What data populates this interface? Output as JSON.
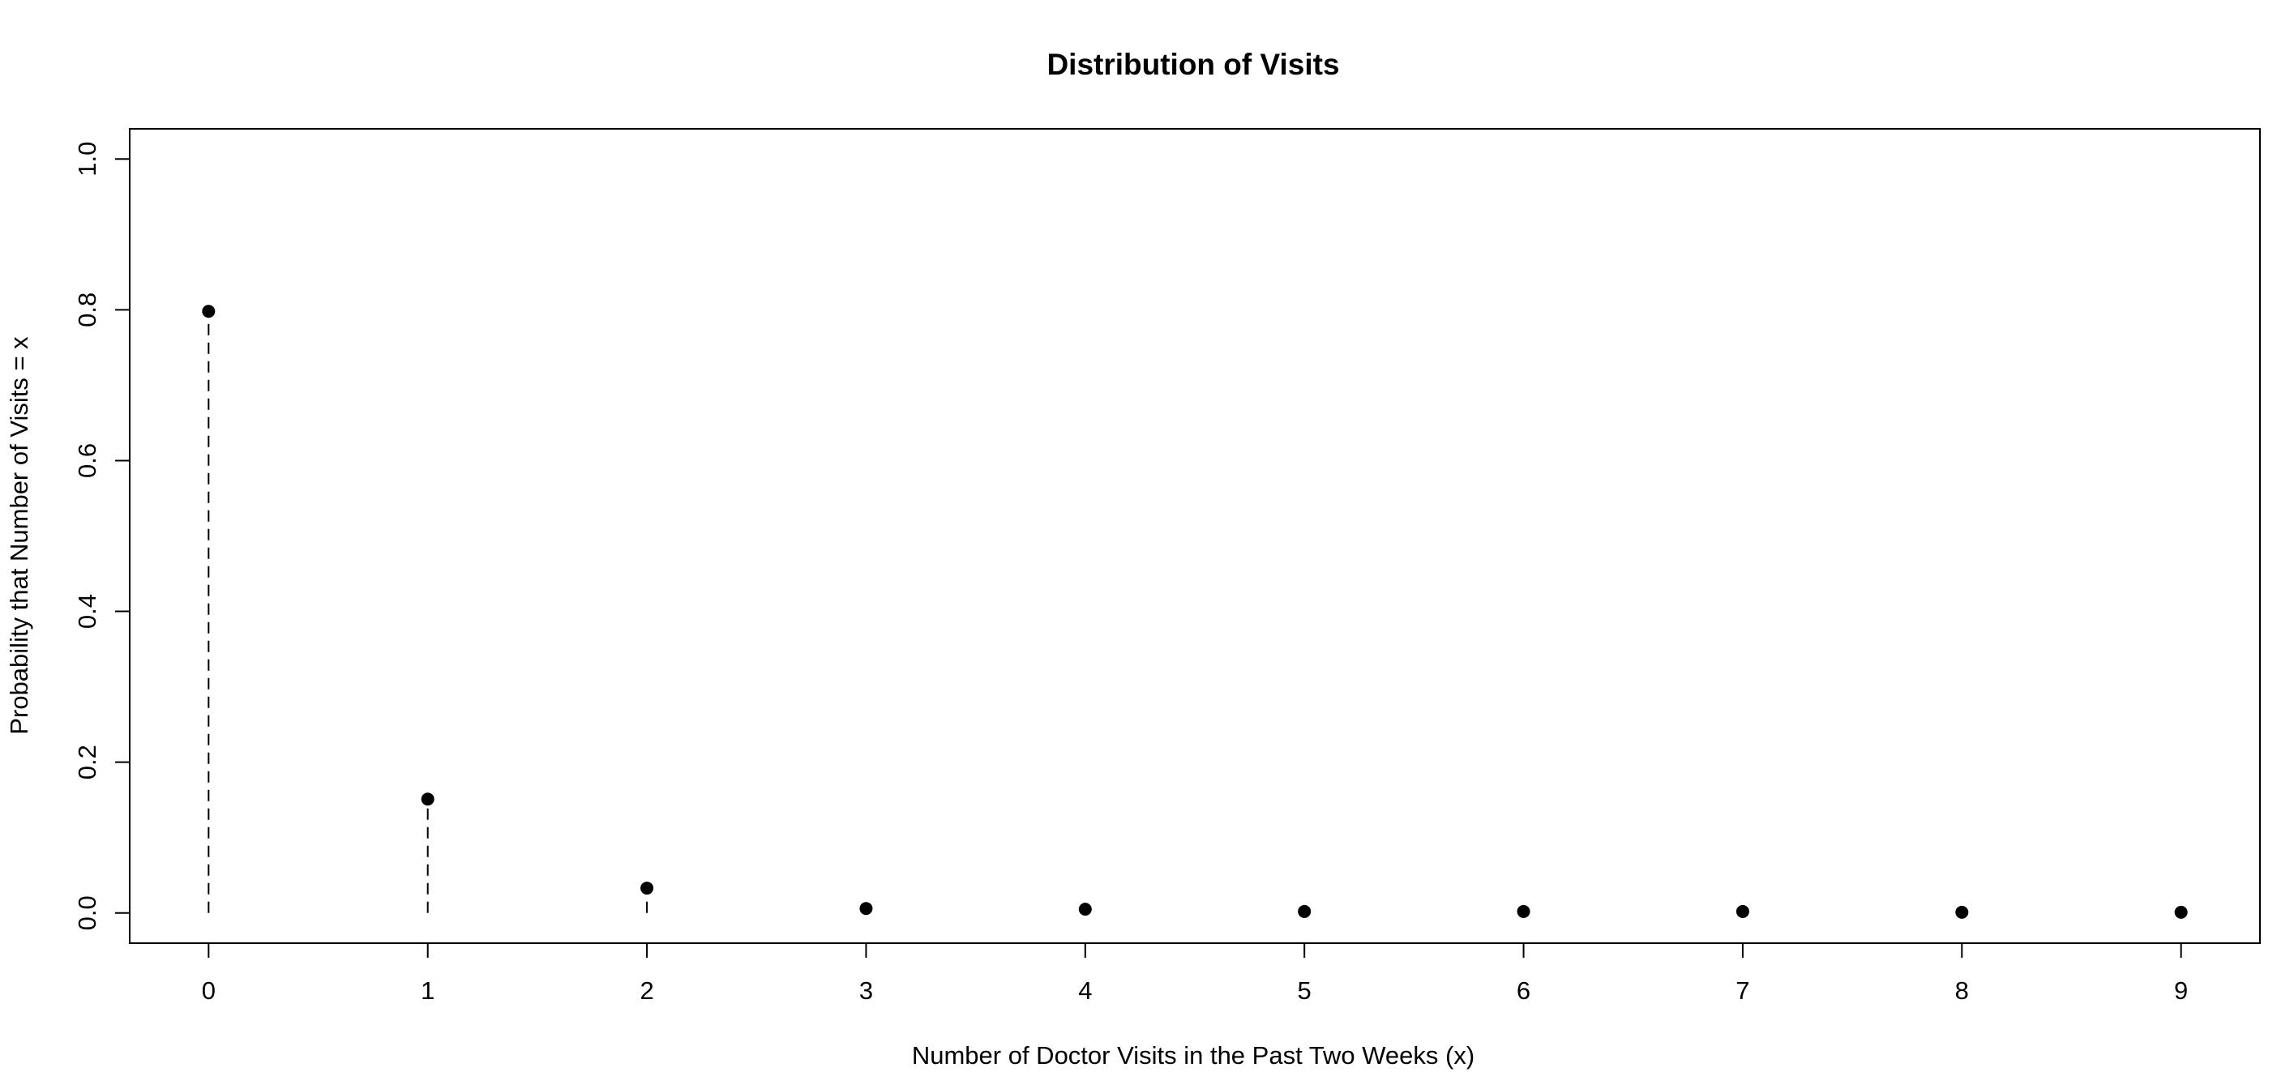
{
  "chart_data": {
    "type": "scatter",
    "title": "Distribution of Visits",
    "xlabel": "Number of Doctor Visits in the Past Two Weeks (x)",
    "ylabel": "Probability that Number of Visits = x",
    "x": [
      0,
      1,
      2,
      3,
      4,
      5,
      6,
      7,
      8,
      9
    ],
    "y": [
      0.798,
      0.151,
      0.033,
      0.006,
      0.005,
      0.002,
      0.002,
      0.002,
      0.001,
      0.001
    ],
    "xticks": [
      "0",
      "1",
      "2",
      "3",
      "4",
      "5",
      "6",
      "7",
      "8",
      "9"
    ],
    "yticks": [
      "0.0",
      "0.2",
      "0.4",
      "0.6",
      "0.8",
      "1.0"
    ],
    "xlim": [
      -0.36,
      9.36
    ],
    "ylim": [
      -0.04,
      1.04
    ],
    "grid": false,
    "legend": "none",
    "line_style": "dashed vertical drop lines",
    "colors": {
      "marks": "#000000",
      "background": "#ffffff"
    }
  }
}
